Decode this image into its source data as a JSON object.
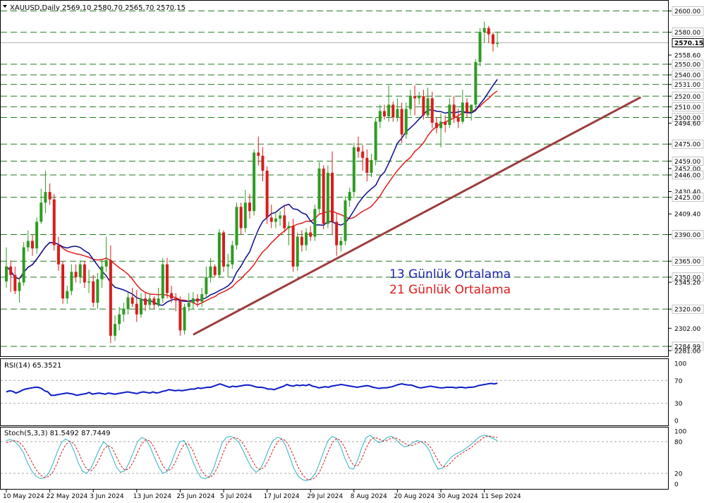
{
  "header": {
    "symbol": "XAUUSD,Daily",
    "ohlc": "2569.10 2580.70 2565.70 2570.15"
  },
  "legend": {
    "ma13_label": "13 Günlük Ortalama",
    "ma21_label": "21 Günlük Ortalama"
  },
  "colors": {
    "bull": "#2e9b22",
    "bear": "#d71d1d",
    "ma13": "#0a0a8c",
    "ma21": "#e01b1b",
    "trend": "#9c3d3d",
    "level": "#227a22",
    "rsi": "#0b1bc7",
    "stoch_main": "#2fb0c4",
    "stoch_signal": "#d11a1a"
  },
  "chart_data": [
    {
      "type": "candlestick",
      "title": "XAUUSD,Daily",
      "ylim": [
        2281.0,
        2605.0
      ],
      "price_ticks": [
        2600.0,
        2580.0,
        2558.6,
        2550.0,
        2540.0,
        2531.0,
        2520.0,
        2510.0,
        2500.0,
        2494.6,
        2475.0,
        2459.0,
        2452.0,
        2446.0,
        2430.4,
        2425.0,
        2409.4,
        2390.0,
        2365.0,
        2350.0,
        2345.2,
        2320.0,
        2302.0,
        2284.99,
        2281.0
      ],
      "current_price": 2570.15,
      "horizontal_levels": [
        2600.0,
        2580.0,
        2550.0,
        2540.0,
        2531.0,
        2520.0,
        2510.0,
        2500.0,
        2475.0,
        2459.0,
        2446.0,
        2425.0,
        2390.0,
        2365.0,
        2350.0,
        2320.0,
        2284.99
      ],
      "x_labels": [
        "10 May 2024",
        "22 May 2024",
        "3 Jun 2024",
        "13 Jun 2024",
        "25 Jun 2024",
        "5 Jul 2024",
        "17 Jul 2024",
        "29 Jul 2024",
        "8 Aug 2024",
        "20 Aug 2024",
        "30 Aug 2024",
        "11 Sep 2024"
      ],
      "x_label_bars": [
        0,
        10,
        20,
        30,
        40,
        50,
        60,
        70,
        80,
        90,
        100,
        110
      ],
      "candles": [
        [
          2346,
          2378,
          2340,
          2360
        ],
        [
          2360,
          2366,
          2336,
          2352
        ],
        [
          2352,
          2360,
          2334,
          2337
        ],
        [
          2337,
          2350,
          2326,
          2345
        ],
        [
          2345,
          2383,
          2342,
          2378
        ],
        [
          2378,
          2394,
          2374,
          2384
        ],
        [
          2384,
          2390,
          2370,
          2377
        ],
        [
          2377,
          2406,
          2372,
          2402
        ],
        [
          2402,
          2433,
          2400,
          2420
        ],
        [
          2420,
          2450,
          2410,
          2430
        ],
        [
          2430,
          2438,
          2418,
          2423
        ],
        [
          2423,
          2428,
          2375,
          2380
        ],
        [
          2380,
          2388,
          2356,
          2362
        ],
        [
          2362,
          2365,
          2325,
          2330
        ],
        [
          2330,
          2342,
          2325,
          2337
        ],
        [
          2337,
          2362,
          2333,
          2355
        ],
        [
          2355,
          2362,
          2345,
          2350
        ],
        [
          2350,
          2366,
          2344,
          2362
        ],
        [
          2362,
          2365,
          2340,
          2345
        ],
        [
          2345,
          2357,
          2335,
          2346
        ],
        [
          2346,
          2352,
          2322,
          2326
        ],
        [
          2326,
          2354,
          2320,
          2348
        ],
        [
          2348,
          2366,
          2340,
          2360
        ],
        [
          2360,
          2388,
          2355,
          2366
        ],
        [
          2366,
          2380,
          2288,
          2295
        ],
        [
          2295,
          2314,
          2290,
          2306
        ],
        [
          2306,
          2322,
          2300,
          2315
        ],
        [
          2315,
          2326,
          2308,
          2320
        ],
        [
          2320,
          2336,
          2315,
          2331
        ],
        [
          2331,
          2340,
          2322,
          2325
        ],
        [
          2325,
          2338,
          2308,
          2315
        ],
        [
          2315,
          2335,
          2312,
          2330
        ],
        [
          2330,
          2336,
          2318,
          2324
        ],
        [
          2324,
          2335,
          2320,
          2330
        ],
        [
          2330,
          2332,
          2320,
          2324
        ],
        [
          2324,
          2340,
          2322,
          2330
        ],
        [
          2330,
          2368,
          2326,
          2362
        ],
        [
          2362,
          2368,
          2330,
          2335
        ],
        [
          2335,
          2342,
          2326,
          2330
        ],
        [
          2330,
          2335,
          2318,
          2328
        ],
        [
          2328,
          2332,
          2295,
          2300
        ],
        [
          2300,
          2325,
          2296,
          2322
        ],
        [
          2322,
          2335,
          2318,
          2326
        ],
        [
          2326,
          2336,
          2320,
          2330
        ],
        [
          2330,
          2334,
          2322,
          2327
        ],
        [
          2327,
          2340,
          2322,
          2334
        ],
        [
          2334,
          2360,
          2330,
          2350
        ],
        [
          2350,
          2368,
          2345,
          2360
        ],
        [
          2360,
          2362,
          2350,
          2352
        ],
        [
          2352,
          2395,
          2350,
          2392
        ],
        [
          2392,
          2394,
          2355,
          2360
        ],
        [
          2360,
          2372,
          2350,
          2362
        ],
        [
          2362,
          2384,
          2358,
          2380
        ],
        [
          2380,
          2420,
          2376,
          2416
        ],
        [
          2416,
          2420,
          2390,
          2396
        ],
        [
          2396,
          2432,
          2392,
          2420
        ],
        [
          2420,
          2428,
          2405,
          2412
        ],
        [
          2412,
          2470,
          2408,
          2467
        ],
        [
          2467,
          2482,
          2455,
          2464
        ],
        [
          2464,
          2472,
          2440,
          2450
        ],
        [
          2450,
          2454,
          2400,
          2406
        ],
        [
          2406,
          2418,
          2396,
          2402
        ],
        [
          2402,
          2412,
          2396,
          2405
        ],
        [
          2405,
          2412,
          2398,
          2408
        ],
        [
          2408,
          2418,
          2392,
          2396
        ],
        [
          2396,
          2402,
          2380,
          2398
        ],
        [
          2398,
          2405,
          2355,
          2360
        ],
        [
          2360,
          2392,
          2356,
          2388
        ],
        [
          2388,
          2394,
          2374,
          2380
        ],
        [
          2380,
          2396,
          2375,
          2392
        ],
        [
          2392,
          2398,
          2384,
          2388
        ],
        [
          2388,
          2418,
          2384,
          2414
        ],
        [
          2414,
          2458,
          2410,
          2452
        ],
        [
          2452,
          2455,
          2395,
          2400
        ],
        [
          2400,
          2455,
          2396,
          2448
        ],
        [
          2448,
          2468,
          2390,
          2402
        ],
        [
          2402,
          2410,
          2370,
          2380
        ],
        [
          2380,
          2388,
          2374,
          2384
        ],
        [
          2384,
          2426,
          2380,
          2422
        ],
        [
          2422,
          2434,
          2416,
          2430
        ],
        [
          2430,
          2476,
          2424,
          2472
        ],
        [
          2472,
          2482,
          2462,
          2468
        ],
        [
          2468,
          2474,
          2450,
          2462
        ],
        [
          2462,
          2470,
          2440,
          2448
        ],
        [
          2448,
          2466,
          2444,
          2460
        ],
        [
          2460,
          2500,
          2455,
          2496
        ],
        [
          2496,
          2512,
          2490,
          2506
        ],
        [
          2506,
          2512,
          2498,
          2501
        ],
        [
          2501,
          2530,
          2496,
          2512
        ],
        [
          2512,
          2515,
          2496,
          2500
        ],
        [
          2500,
          2518,
          2496,
          2508
        ],
        [
          2508,
          2514,
          2476,
          2484
        ],
        [
          2484,
          2514,
          2480,
          2508
        ],
        [
          2508,
          2526,
          2502,
          2520
        ],
        [
          2520,
          2530,
          2502,
          2518
        ],
        [
          2518,
          2524,
          2512,
          2520
        ],
        [
          2520,
          2526,
          2498,
          2502
        ],
        [
          2502,
          2528,
          2500,
          2518
        ],
        [
          2518,
          2524,
          2490,
          2495
        ],
        [
          2495,
          2500,
          2485,
          2490
        ],
        [
          2490,
          2504,
          2472,
          2496
        ],
        [
          2496,
          2502,
          2486,
          2493
        ],
        [
          2493,
          2518,
          2490,
          2512
        ],
        [
          2512,
          2520,
          2495,
          2500
        ],
        [
          2500,
          2508,
          2490,
          2496
        ],
        [
          2496,
          2526,
          2494,
          2514
        ],
        [
          2514,
          2518,
          2500,
          2505
        ],
        [
          2505,
          2510,
          2497,
          2512
        ],
        [
          2512,
          2555,
          2508,
          2552
        ],
        [
          2552,
          2584,
          2548,
          2580
        ],
        [
          2580,
          2590,
          2570,
          2584
        ],
        [
          2584,
          2586,
          2570,
          2578
        ],
        [
          2578,
          2580,
          2562,
          2569
        ],
        [
          2569.1,
          2580.7,
          2565.7,
          2570.15
        ]
      ],
      "trendline": {
        "from": [
          43,
          2296
        ],
        "to": [
          146,
          2519
        ]
      }
    },
    {
      "type": "line",
      "title": "RSI(14) 65.3521",
      "ylim": [
        0,
        100
      ],
      "y_ticks": [
        100,
        70,
        30,
        0
      ],
      "levels": [
        70,
        30
      ],
      "values": [
        50,
        52,
        51,
        48,
        50,
        53,
        55,
        56,
        57,
        58,
        58,
        56,
        52,
        50,
        44,
        44,
        45,
        46,
        47,
        48,
        47,
        46,
        44,
        45,
        46,
        47,
        49,
        46,
        47,
        48,
        47,
        46,
        48,
        47,
        46,
        47,
        48,
        49,
        50,
        49,
        48,
        47,
        49,
        50,
        49,
        48,
        50,
        48,
        49,
        51,
        52,
        54,
        53,
        52,
        53,
        52,
        53,
        54,
        55,
        55,
        57,
        56,
        57,
        58,
        58,
        60,
        62,
        64,
        62,
        60,
        58,
        60,
        59,
        60,
        61,
        62,
        62,
        61,
        59,
        58,
        58,
        57,
        55,
        55,
        54,
        56,
        58,
        60,
        63,
        61,
        60,
        62,
        61,
        62,
        61,
        63,
        60,
        59,
        57,
        58,
        59,
        58,
        60,
        61,
        62,
        63,
        62,
        61,
        60,
        59,
        58,
        59,
        60,
        61,
        60,
        58,
        57,
        56,
        57,
        57,
        58,
        59,
        61,
        63,
        64,
        63,
        62,
        62,
        60,
        58,
        57,
        58,
        59,
        60,
        59,
        58,
        57,
        57,
        58,
        58,
        58,
        57,
        58,
        58,
        57,
        58,
        58,
        59,
        61,
        62,
        63,
        64,
        65,
        64,
        65.35
      ]
    },
    {
      "type": "line",
      "title": "Stoch(5,3,3) 81.5492 87.7449",
      "ylim": [
        0,
        100
      ],
      "y_ticks": [
        100,
        80,
        20,
        0
      ],
      "levels": [
        80,
        20
      ],
      "series": [
        {
          "name": "%K",
          "values": [
            82,
            84,
            80,
            72,
            60,
            40,
            25,
            15,
            10,
            12,
            20,
            38,
            60,
            78,
            85,
            80,
            62,
            40,
            24,
            20,
            30,
            48,
            66,
            80,
            72,
            52,
            32,
            22,
            25,
            40,
            60,
            80,
            88,
            84,
            70,
            50,
            32,
            20,
            24,
            40,
            62,
            80,
            82,
            66,
            44,
            25,
            12,
            10,
            14,
            30,
            55,
            78,
            88,
            90,
            86,
            78,
            62,
            45,
            30,
            22,
            28,
            45,
            66,
            82,
            88,
            86,
            72,
            50,
            28,
            14,
            8,
            6,
            10,
            20,
            40,
            62,
            82,
            90,
            86,
            70,
            48,
            30,
            28,
            45,
            70,
            88,
            92,
            84,
            78,
            82,
            88,
            90,
            84,
            76,
            70,
            72,
            78,
            82,
            80,
            74,
            62,
            42,
            28,
            30,
            40,
            50,
            56,
            60,
            64,
            70,
            76,
            84,
            90,
            92,
            90,
            86,
            81.55
          ]
        },
        {
          "name": "%D",
          "values": [
            78,
            80,
            82,
            79,
            71,
            57,
            42,
            27,
            17,
            12,
            14,
            23,
            39,
            59,
            74,
            81,
            76,
            61,
            42,
            28,
            25,
            33,
            48,
            65,
            73,
            68,
            52,
            35,
            26,
            29,
            42,
            60,
            76,
            84,
            81,
            68,
            51,
            34,
            25,
            28,
            42,
            61,
            75,
            76,
            64,
            45,
            27,
            16,
            12,
            18,
            33,
            54,
            74,
            85,
            88,
            85,
            75,
            62,
            46,
            32,
            27,
            32,
            46,
            64,
            79,
            85,
            82,
            69,
            50,
            31,
            17,
            9,
            8,
            12,
            23,
            41,
            61,
            78,
            86,
            82,
            68,
            49,
            35,
            34,
            48,
            68,
            83,
            88,
            85,
            81,
            83,
            87,
            87,
            83,
            77,
            73,
            73,
            77,
            80,
            79,
            72,
            59,
            44,
            33,
            33,
            40,
            49,
            55,
            60,
            65,
            70,
            77,
            83,
            89,
            91,
            89,
            87.74
          ]
        }
      ]
    }
  ]
}
